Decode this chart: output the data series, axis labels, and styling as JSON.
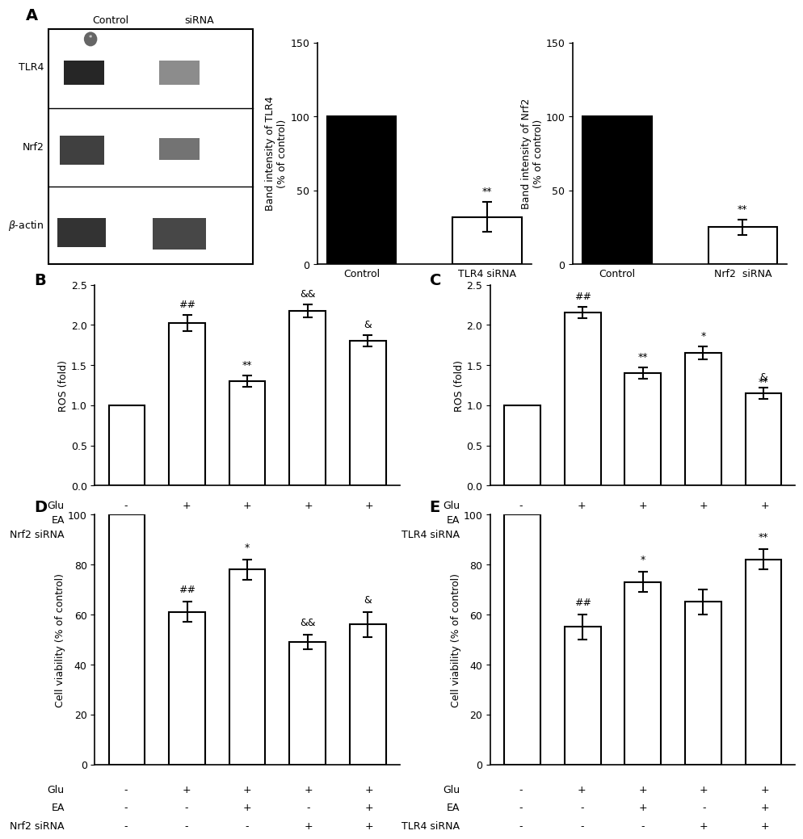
{
  "panel_A_TLR4": {
    "categories": [
      "Control",
      "TLR4 siRNA"
    ],
    "values": [
      100,
      32
    ],
    "errors": [
      0,
      10
    ],
    "ylabel": "Band intensity of TLR4\n(% of control)",
    "ylim": [
      0,
      150
    ],
    "yticks": [
      0,
      50,
      100,
      150
    ],
    "bar_colors": [
      "#000000",
      "#ffffff"
    ],
    "significance": [
      "",
      "**"
    ]
  },
  "panel_A_Nrf2": {
    "categories": [
      "Control",
      "Nrf2  siRNA"
    ],
    "values": [
      100,
      25
    ],
    "errors": [
      0,
      5
    ],
    "ylabel": "Band intensity of Nrf2\n(% of control)",
    "ylim": [
      0,
      150
    ],
    "yticks": [
      0,
      50,
      100,
      150
    ],
    "bar_colors": [
      "#000000",
      "#ffffff"
    ],
    "significance": [
      "",
      "**"
    ]
  },
  "panel_B": {
    "values": [
      1.0,
      2.02,
      1.3,
      2.17,
      1.8
    ],
    "errors": [
      0.0,
      0.1,
      0.07,
      0.08,
      0.07
    ],
    "ylabel": "ROS (fold)",
    "ylim": [
      0.0,
      2.5
    ],
    "yticks": [
      0.0,
      0.5,
      1.0,
      1.5,
      2.0,
      2.5
    ],
    "significance": [
      "",
      "##",
      "**",
      "&&",
      "&"
    ],
    "glu": [
      "-",
      "+",
      "+",
      "+",
      "+"
    ],
    "ea": [
      "-",
      "-",
      "+",
      "-",
      "+"
    ],
    "siRNA": [
      "-",
      "-",
      "-",
      "+",
      "+"
    ],
    "siRNA_label": "Nrf2 siRNA"
  },
  "panel_C": {
    "values": [
      1.0,
      2.15,
      1.4,
      1.65,
      1.15
    ],
    "errors": [
      0.0,
      0.07,
      0.07,
      0.08,
      0.07
    ],
    "ylabel": "ROS (fold)",
    "ylim": [
      0.0,
      2.5
    ],
    "yticks": [
      0.0,
      0.5,
      1.0,
      1.5,
      2.0,
      2.5
    ],
    "significance": [
      "",
      "##",
      "**",
      "*",
      "&"
    ],
    "significance2": [
      "",
      "",
      "",
      "",
      "**"
    ],
    "glu": [
      "-",
      "+",
      "+",
      "+",
      "+"
    ],
    "ea": [
      "-",
      "-",
      "+",
      "-",
      "+"
    ],
    "siRNA": [
      "-",
      "-",
      "-",
      "+",
      "+"
    ],
    "siRNA_label": "TLR4 siRNA"
  },
  "panel_D": {
    "values": [
      100,
      61,
      78,
      49,
      56
    ],
    "errors": [
      0,
      4,
      4,
      3,
      5
    ],
    "ylabel": "Cell viability (% of control)",
    "ylim": [
      0,
      100
    ],
    "yticks": [
      0,
      20,
      40,
      60,
      80,
      100
    ],
    "significance": [
      "",
      "##",
      "*",
      "&&",
      "&"
    ],
    "significance2": [
      "",
      "",
      "",
      "",
      ""
    ],
    "glu": [
      "-",
      "+",
      "+",
      "+",
      "+"
    ],
    "ea": [
      "-",
      "-",
      "+",
      "-",
      "+"
    ],
    "siRNA": [
      "-",
      "-",
      "-",
      "+",
      "+"
    ],
    "siRNA_label": "Nrf2 siRNA"
  },
  "panel_E": {
    "values": [
      100,
      55,
      73,
      65,
      82
    ],
    "errors": [
      0,
      5,
      4,
      5,
      4
    ],
    "ylabel": "Cell viability (% of control)",
    "ylim": [
      0,
      100
    ],
    "yticks": [
      0,
      20,
      40,
      60,
      80,
      100
    ],
    "significance": [
      "",
      "##",
      "*",
      "",
      "**"
    ],
    "significance2": [
      "",
      "",
      "",
      "",
      ""
    ],
    "glu": [
      "-",
      "+",
      "+",
      "+",
      "+"
    ],
    "ea": [
      "-",
      "-",
      "+",
      "-",
      "+"
    ],
    "siRNA": [
      "-",
      "-",
      "-",
      "+",
      "+"
    ],
    "siRNA_label": "TLR4 siRNA"
  },
  "bar_color": "#ffffff",
  "bar_edgecolor": "#000000",
  "bar_linewidth": 1.5,
  "error_color": "#000000",
  "sig_fontsize": 9,
  "label_fontsize": 9,
  "axis_fontsize": 9,
  "tick_fontsize": 9,
  "panel_label_fontsize": 14,
  "background_color": "#ffffff"
}
